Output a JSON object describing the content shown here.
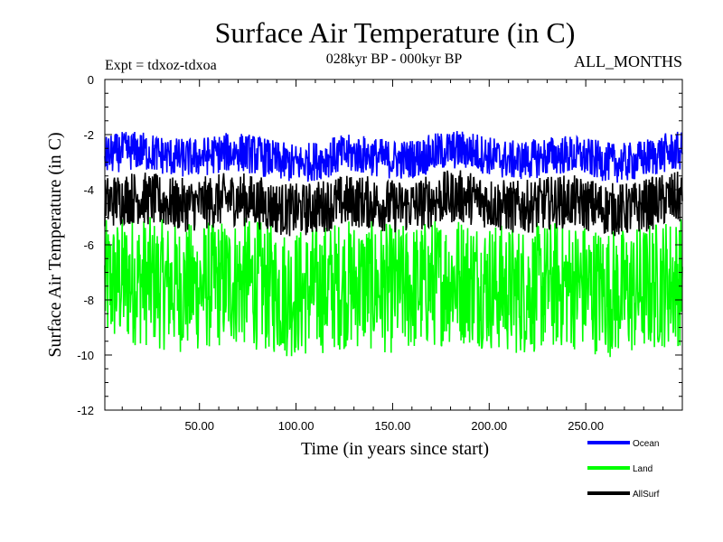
{
  "chart_data": {
    "type": "line",
    "title": "Surface Air Temperature (in C)",
    "subtitle_left": "Expt = tdxoz-tdxoa",
    "subtitle_center": "028kyr BP - 000kyr BP",
    "subtitle_right": "ALL_MONTHS",
    "xlabel": "Time (in years since start)",
    "ylabel": "Surface Air Temperature (in C)",
    "xlim": [
      1,
      300
    ],
    "ylim": [
      -12,
      0
    ],
    "x_ticks": [
      50,
      100,
      150,
      200,
      250
    ],
    "x_tick_labels": [
      "50.00",
      "100.00",
      "150.00",
      "200.00",
      "250.00"
    ],
    "y_ticks": [
      0,
      -2,
      -4,
      -6,
      -8,
      -10,
      -12
    ],
    "y_tick_labels": [
      "0",
      "-2",
      "-4",
      "-6",
      "-8",
      "-10",
      "-12"
    ],
    "grid": false,
    "legend_position": "bottom-right",
    "series": [
      {
        "name": "Ocean",
        "color": "#0000ff",
        "mean": -2.8,
        "low": -3.6,
        "high": -1.9
      },
      {
        "name": "Land",
        "color": "#00ff00",
        "mean": -7.5,
        "low": -10.3,
        "high": -4.7
      },
      {
        "name": "AllSurf",
        "color": "#000000",
        "mean": -4.5,
        "low": -5.6,
        "high": -3.3
      }
    ]
  }
}
